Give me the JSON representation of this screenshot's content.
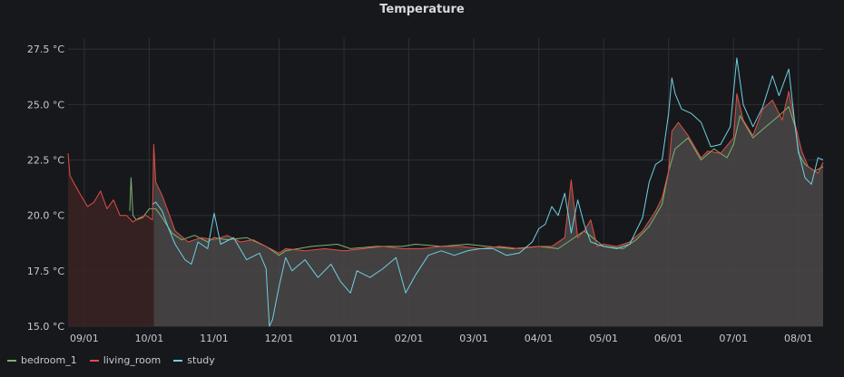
{
  "panel": {
    "title": "Temperature"
  },
  "colors": {
    "background": "#17181c",
    "grid": "#2e2f35",
    "fill": "#4a4848",
    "pre_fill": "#3a2224"
  },
  "chart_data": {
    "type": "line",
    "title": "Temperature",
    "ylim": [
      15.0,
      28.0
    ],
    "y_ticks": [
      15.0,
      17.5,
      20.0,
      22.5,
      25.0,
      27.5
    ],
    "y_tick_labels": [
      "15.0 °C",
      "17.5 °C",
      "20.0 °C",
      "22.5 °C",
      "25.0 °C",
      "27.5 °C"
    ],
    "x_tick_labels": [
      "09/01",
      "10/01",
      "11/01",
      "12/01",
      "01/01",
      "02/01",
      "03/01",
      "04/01",
      "05/01",
      "06/01",
      "07/01",
      "08/01"
    ],
    "x_ticks_month_index": [
      0,
      1,
      2,
      3,
      4,
      5,
      6,
      7,
      8,
      9,
      10,
      11
    ],
    "x_range_month_index": [
      -0.25,
      11.38
    ],
    "grid": true,
    "legend_position": "bottom-left",
    "series": [
      {
        "name": "bedroom_1",
        "color": "#7eb26d",
        "points": [
          [
            0.7,
            20.2
          ],
          [
            0.72,
            21.7
          ],
          [
            0.75,
            20.0
          ],
          [
            0.8,
            19.8
          ],
          [
            0.9,
            19.9
          ],
          [
            1.0,
            20.3
          ],
          [
            1.1,
            20.3
          ],
          [
            1.2,
            19.9
          ],
          [
            1.35,
            19.2
          ],
          [
            1.5,
            18.9
          ],
          [
            1.7,
            19.1
          ],
          [
            1.9,
            18.8
          ],
          [
            2.0,
            19.0
          ],
          [
            2.2,
            18.9
          ],
          [
            2.5,
            19.0
          ],
          [
            2.8,
            18.6
          ],
          [
            3.0,
            18.2
          ],
          [
            3.1,
            18.4
          ],
          [
            3.5,
            18.6
          ],
          [
            3.9,
            18.7
          ],
          [
            4.1,
            18.5
          ],
          [
            4.5,
            18.6
          ],
          [
            4.9,
            18.6
          ],
          [
            5.1,
            18.7
          ],
          [
            5.5,
            18.6
          ],
          [
            5.9,
            18.7
          ],
          [
            6.2,
            18.6
          ],
          [
            6.6,
            18.5
          ],
          [
            7.0,
            18.6
          ],
          [
            7.3,
            18.5
          ],
          [
            7.5,
            18.9
          ],
          [
            7.7,
            19.3
          ],
          [
            8.0,
            18.6
          ],
          [
            8.3,
            18.5
          ],
          [
            8.5,
            18.9
          ],
          [
            8.7,
            19.5
          ],
          [
            8.9,
            20.5
          ],
          [
            9.0,
            22.0
          ],
          [
            9.1,
            23.0
          ],
          [
            9.3,
            23.5
          ],
          [
            9.5,
            22.5
          ],
          [
            9.7,
            23.0
          ],
          [
            9.9,
            22.6
          ],
          [
            10.0,
            23.2
          ],
          [
            10.1,
            24.5
          ],
          [
            10.3,
            23.5
          ],
          [
            10.5,
            24.0
          ],
          [
            10.7,
            24.5
          ],
          [
            10.85,
            24.9
          ],
          [
            10.95,
            24.0
          ],
          [
            11.0,
            22.8
          ],
          [
            11.1,
            22.3
          ],
          [
            11.25,
            22.0
          ],
          [
            11.38,
            22.2
          ]
        ]
      },
      {
        "name": "living_room",
        "color": "#e24d42",
        "points": [
          [
            -0.25,
            22.8
          ],
          [
            -0.22,
            21.8
          ],
          [
            -0.15,
            21.4
          ],
          [
            -0.05,
            20.9
          ],
          [
            0.05,
            20.4
          ],
          [
            0.15,
            20.6
          ],
          [
            0.25,
            21.1
          ],
          [
            0.35,
            20.3
          ],
          [
            0.45,
            20.7
          ],
          [
            0.55,
            20.0
          ],
          [
            0.65,
            20.0
          ],
          [
            0.75,
            19.7
          ],
          [
            0.85,
            19.9
          ],
          [
            0.95,
            20.0
          ],
          [
            1.05,
            19.8
          ],
          [
            1.07,
            23.2
          ],
          [
            1.1,
            21.5
          ],
          [
            1.2,
            20.9
          ],
          [
            1.3,
            20.1
          ],
          [
            1.4,
            19.3
          ],
          [
            1.6,
            18.8
          ],
          [
            1.8,
            19.0
          ],
          [
            2.0,
            18.9
          ],
          [
            2.2,
            19.1
          ],
          [
            2.4,
            18.8
          ],
          [
            2.6,
            18.9
          ],
          [
            2.8,
            18.6
          ],
          [
            3.0,
            18.3
          ],
          [
            3.1,
            18.5
          ],
          [
            3.4,
            18.4
          ],
          [
            3.7,
            18.5
          ],
          [
            4.0,
            18.4
          ],
          [
            4.3,
            18.5
          ],
          [
            4.6,
            18.6
          ],
          [
            4.9,
            18.5
          ],
          [
            5.2,
            18.5
          ],
          [
            5.5,
            18.6
          ],
          [
            5.8,
            18.6
          ],
          [
            6.1,
            18.5
          ],
          [
            6.4,
            18.6
          ],
          [
            6.7,
            18.5
          ],
          [
            7.0,
            18.6
          ],
          [
            7.2,
            18.6
          ],
          [
            7.4,
            19.0
          ],
          [
            7.5,
            21.6
          ],
          [
            7.6,
            19.0
          ],
          [
            7.7,
            19.3
          ],
          [
            7.8,
            19.8
          ],
          [
            7.9,
            18.6
          ],
          [
            8.0,
            18.7
          ],
          [
            8.2,
            18.6
          ],
          [
            8.4,
            18.8
          ],
          [
            8.6,
            19.3
          ],
          [
            8.8,
            20.2
          ],
          [
            8.9,
            20.8
          ],
          [
            9.0,
            22.0
          ],
          [
            9.05,
            23.8
          ],
          [
            9.15,
            24.2
          ],
          [
            9.3,
            23.6
          ],
          [
            9.5,
            22.6
          ],
          [
            9.6,
            22.9
          ],
          [
            9.8,
            22.8
          ],
          [
            10.0,
            23.5
          ],
          [
            10.05,
            25.5
          ],
          [
            10.15,
            24.3
          ],
          [
            10.3,
            23.6
          ],
          [
            10.45,
            24.8
          ],
          [
            10.6,
            25.2
          ],
          [
            10.75,
            24.3
          ],
          [
            10.85,
            25.6
          ],
          [
            10.95,
            24.1
          ],
          [
            11.05,
            22.9
          ],
          [
            11.15,
            22.2
          ],
          [
            11.3,
            21.9
          ],
          [
            11.38,
            22.4
          ]
        ]
      },
      {
        "name": "study",
        "color": "#6ed0e0",
        "points": [
          [
            1.05,
            20.5
          ],
          [
            1.1,
            20.6
          ],
          [
            1.2,
            20.2
          ],
          [
            1.3,
            19.4
          ],
          [
            1.4,
            18.7
          ],
          [
            1.55,
            18.0
          ],
          [
            1.65,
            17.8
          ],
          [
            1.75,
            18.8
          ],
          [
            1.9,
            18.5
          ],
          [
            2.0,
            20.1
          ],
          [
            2.1,
            18.7
          ],
          [
            2.3,
            19.0
          ],
          [
            2.5,
            18.0
          ],
          [
            2.7,
            18.3
          ],
          [
            2.8,
            17.6
          ],
          [
            2.85,
            15.0
          ],
          [
            2.9,
            15.3
          ],
          [
            3.0,
            16.8
          ],
          [
            3.1,
            18.1
          ],
          [
            3.2,
            17.5
          ],
          [
            3.4,
            18.0
          ],
          [
            3.6,
            17.2
          ],
          [
            3.8,
            17.8
          ],
          [
            3.95,
            17.0
          ],
          [
            4.1,
            16.5
          ],
          [
            4.2,
            17.5
          ],
          [
            4.4,
            17.2
          ],
          [
            4.6,
            17.6
          ],
          [
            4.8,
            18.1
          ],
          [
            4.95,
            16.5
          ],
          [
            5.1,
            17.3
          ],
          [
            5.3,
            18.2
          ],
          [
            5.5,
            18.4
          ],
          [
            5.7,
            18.2
          ],
          [
            5.9,
            18.4
          ],
          [
            6.1,
            18.5
          ],
          [
            6.3,
            18.5
          ],
          [
            6.5,
            18.2
          ],
          [
            6.7,
            18.3
          ],
          [
            6.9,
            18.8
          ],
          [
            7.0,
            19.4
          ],
          [
            7.1,
            19.6
          ],
          [
            7.2,
            20.4
          ],
          [
            7.3,
            20.0
          ],
          [
            7.4,
            21.0
          ],
          [
            7.5,
            19.2
          ],
          [
            7.6,
            20.7
          ],
          [
            7.7,
            19.6
          ],
          [
            7.8,
            18.8
          ],
          [
            8.0,
            18.6
          ],
          [
            8.2,
            18.5
          ],
          [
            8.4,
            18.7
          ],
          [
            8.6,
            19.9
          ],
          [
            8.7,
            21.5
          ],
          [
            8.8,
            22.3
          ],
          [
            8.9,
            22.5
          ],
          [
            9.0,
            24.6
          ],
          [
            9.05,
            26.2
          ],
          [
            9.1,
            25.5
          ],
          [
            9.2,
            24.8
          ],
          [
            9.35,
            24.6
          ],
          [
            9.5,
            24.2
          ],
          [
            9.65,
            23.1
          ],
          [
            9.8,
            23.2
          ],
          [
            9.95,
            24.0
          ],
          [
            10.05,
            27.1
          ],
          [
            10.15,
            25.0
          ],
          [
            10.3,
            24.0
          ],
          [
            10.45,
            24.9
          ],
          [
            10.6,
            26.3
          ],
          [
            10.7,
            25.4
          ],
          [
            10.85,
            26.6
          ],
          [
            10.95,
            24.0
          ],
          [
            11.0,
            22.9
          ],
          [
            11.1,
            21.7
          ],
          [
            11.2,
            21.4
          ],
          [
            11.3,
            22.6
          ],
          [
            11.38,
            22.5
          ]
        ]
      }
    ]
  },
  "legend": {
    "items": [
      {
        "label": "bedroom_1",
        "color": "#7eb26d"
      },
      {
        "label": "living_room",
        "color": "#e24d42"
      },
      {
        "label": "study",
        "color": "#6ed0e0"
      }
    ]
  }
}
